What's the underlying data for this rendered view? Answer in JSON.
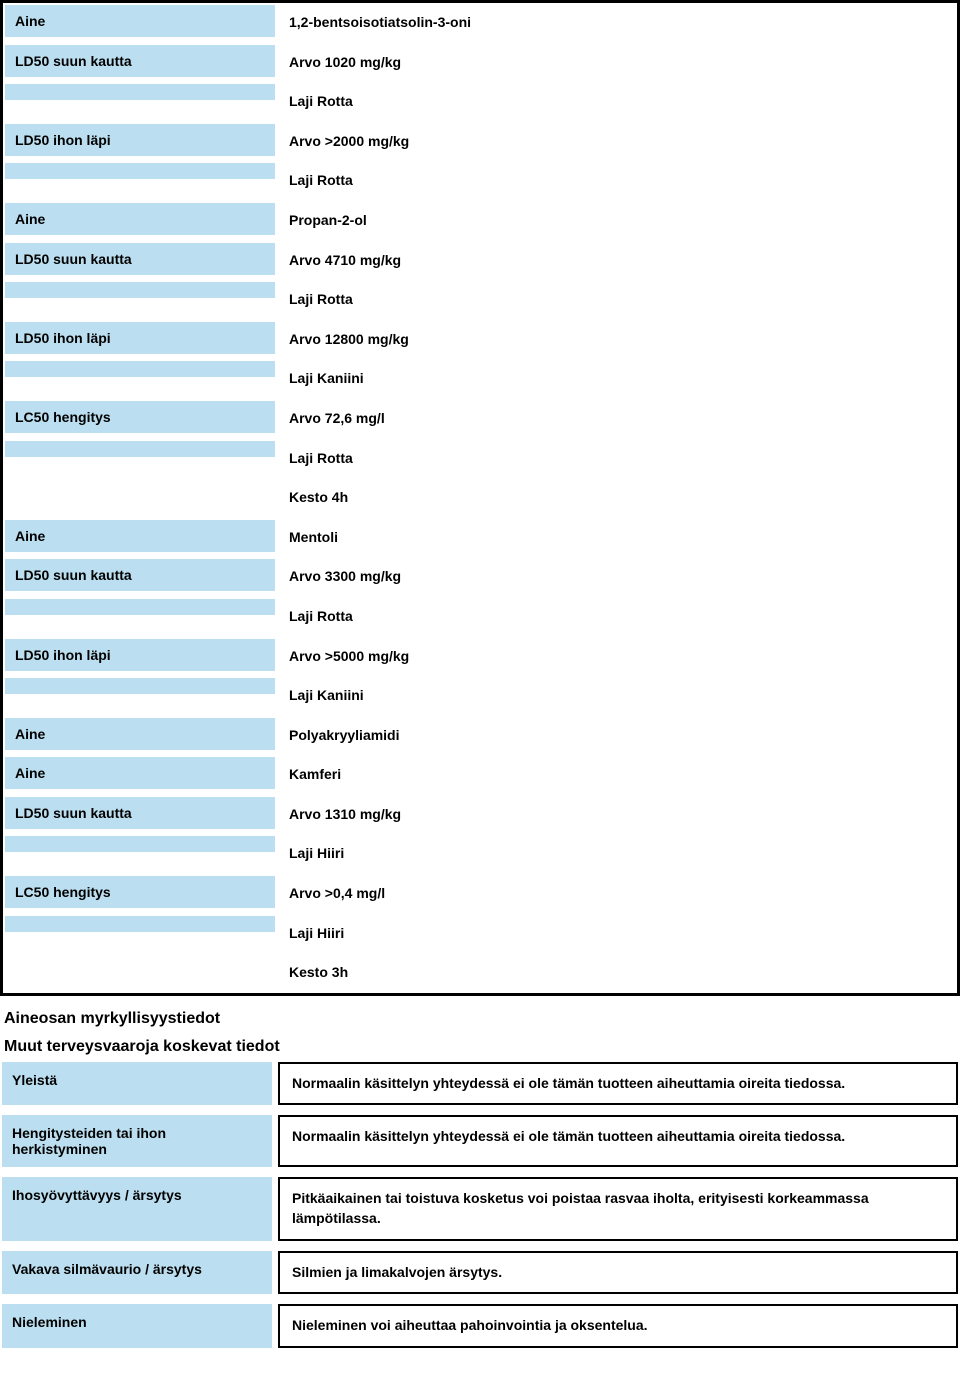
{
  "colors": {
    "label_bg": "#bbdff0",
    "border": "#000000",
    "page_bg": "#ffffff",
    "text": "#000000"
  },
  "box1": {
    "rows": [
      {
        "label": "Aine",
        "value": "1,2-bentsoisotiatsolin-3-oni"
      },
      {
        "label": "LD50 suun kautta",
        "value": "Arvo 1020 mg/kg"
      },
      {
        "label": "",
        "value": "Laji Rotta",
        "spacer": true
      },
      {
        "label": "LD50 ihon läpi",
        "value": "Arvo >2000 mg/kg"
      },
      {
        "label": "",
        "value": "Laji Rotta",
        "spacer": true
      },
      {
        "label": "Aine",
        "value": "Propan-2-ol"
      },
      {
        "label": "LD50 suun kautta",
        "value": "Arvo 4710 mg/kg"
      },
      {
        "label": "",
        "value": "Laji Rotta",
        "spacer": true
      },
      {
        "label": "LD50 ihon läpi",
        "value": "Arvo 12800 mg/kg"
      },
      {
        "label": "",
        "value": "Laji Kaniini",
        "spacer": true
      },
      {
        "label": "LC50 hengitys",
        "value": "Arvo 72,6 mg/l"
      },
      {
        "label": "",
        "value": "Laji Rotta",
        "spacer": true
      },
      {
        "label": "",
        "value": "Kesto 4h",
        "blank": true
      },
      {
        "label": "Aine",
        "value": "Mentoli"
      },
      {
        "label": "LD50 suun kautta",
        "value": "Arvo 3300 mg/kg"
      },
      {
        "label": "",
        "value": "Laji Rotta",
        "spacer": true
      },
      {
        "label": "LD50 ihon läpi",
        "value": "Arvo >5000 mg/kg"
      },
      {
        "label": "",
        "value": "Laji Kaniini",
        "spacer": true
      },
      {
        "label": "Aine",
        "value": "Polyakryyliamidi"
      },
      {
        "label": "Aine",
        "value": "Kamferi"
      },
      {
        "label": "LD50 suun kautta",
        "value": "Arvo 1310 mg/kg"
      },
      {
        "label": "",
        "value": "Laji Hiiri",
        "spacer": true
      },
      {
        "label": "LC50 hengitys",
        "value": "Arvo >0,4 mg/l"
      },
      {
        "label": "",
        "value": "Laji Hiiri",
        "spacer": true
      },
      {
        "label": "",
        "value": "Kesto 3h",
        "blank": true
      }
    ]
  },
  "heading1": "Aineosan myrkyllisyystiedot",
  "heading2": "Muut terveysvaaroja koskevat tiedot",
  "lower": [
    {
      "label": "Yleistä",
      "value": "Normaalin käsittelyn yhteydessä ei ole tämän tuotteen aiheuttamia oireita tiedossa."
    },
    {
      "label": "Hengitysteiden tai ihon herkistyminen",
      "value": "Normaalin käsittelyn yhteydessä ei ole tämän tuotteen aiheuttamia oireita tiedossa."
    },
    {
      "label": "Ihosyövyttävyys / ärsytys",
      "value": "Pitkäaikainen tai toistuva kosketus voi poistaa rasvaa iholta, erityisesti korkeammassa lämpötilassa."
    },
    {
      "label": "Vakava silmävaurio / ärsytys",
      "value": "Silmien ja limakalvojen ärsytys."
    },
    {
      "label": "Nieleminen",
      "value": "Nieleminen voi aiheuttaa pahoinvointia ja oksentelua."
    }
  ]
}
